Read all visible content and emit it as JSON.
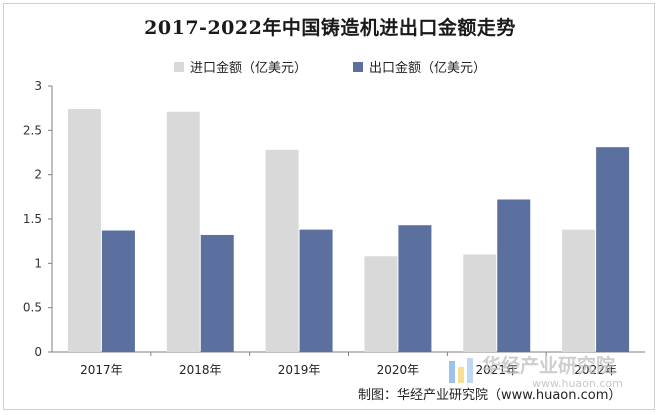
{
  "chart_data": {
    "type": "bar",
    "title": "2017-2022年中国铸造机进出口金额走势",
    "categories": [
      "2017年",
      "2018年",
      "2019年",
      "2020年",
      "2021年",
      "2022年"
    ],
    "series": [
      {
        "name": "进口金额（亿美元）",
        "color": "#d9d9d9",
        "values": [
          2.74,
          2.71,
          2.28,
          1.08,
          1.1,
          1.38
        ]
      },
      {
        "name": "出口金额（亿美元）",
        "color": "#5b709f",
        "values": [
          1.37,
          1.32,
          1.38,
          1.43,
          1.72,
          2.31
        ]
      }
    ],
    "yticks": [
      "0",
      "0.5",
      "1",
      "1.5",
      "2",
      "2.5",
      "3"
    ],
    "ylim": [
      0,
      3
    ],
    "grid": false,
    "legend_position": "top-center"
  },
  "source": "制图：华经产业研究院（www.huaon.com）",
  "watermark": {
    "text": "华经产业研究院",
    "url": "www.huaon.com",
    "colors": {
      "blue": "#4a90d9",
      "yellow": "#f2c94c"
    }
  }
}
